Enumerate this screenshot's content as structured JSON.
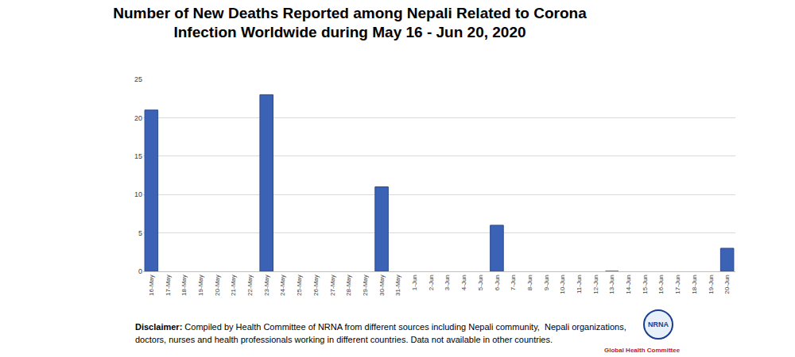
{
  "chart_data": {
    "type": "bar",
    "title": "Number of New Deaths Reported among Nepali Related to Corona\nInfection Worldwide during May 16 - Jun 20, 2020",
    "categories": [
      "16-May",
      "17-May",
      "18-May",
      "19-May",
      "20-May",
      "21-May",
      "22-May",
      "23-May",
      "24-May",
      "25-May",
      "26-May",
      "27-May",
      "28-May",
      "29-May",
      "30-May",
      "31-May",
      "1-Jun",
      "2-Jun",
      "3-Jun",
      "4-Jun",
      "5-Jun",
      "6-Jun",
      "7-Jun",
      "8-Jun",
      "9-Jun",
      "10-Jun",
      "11-Jun",
      "12-Jun",
      "13-Jun",
      "14-Jun",
      "15-Jun",
      "16-Jun",
      "17-Jun",
      "18-Jun",
      "19-Jun",
      "20-Jun"
    ],
    "values": [
      21,
      null,
      null,
      null,
      null,
      null,
      null,
      23,
      null,
      null,
      null,
      null,
      null,
      null,
      11,
      null,
      null,
      null,
      null,
      null,
      null,
      6,
      null,
      null,
      null,
      null,
      null,
      null,
      0,
      null,
      null,
      null,
      null,
      null,
      null,
      3
    ],
    "color": "#3b62b5",
    "ylim": [
      0,
      25
    ],
    "yticks": [
      0,
      5,
      10,
      15,
      20,
      25
    ],
    "grid": true,
    "annotations": [
      {
        "label": "Disclaimer:",
        "lines": [
          "Compiled by Health Committee of NRNA from different sources including Nepali community,  Nepali organizations,",
          "doctors, nurses and health professionals working in different countries. Data not available in other countries."
        ]
      }
    ],
    "logo": {
      "label": "NRNA",
      "caption": "Global Health Committee"
    }
  }
}
